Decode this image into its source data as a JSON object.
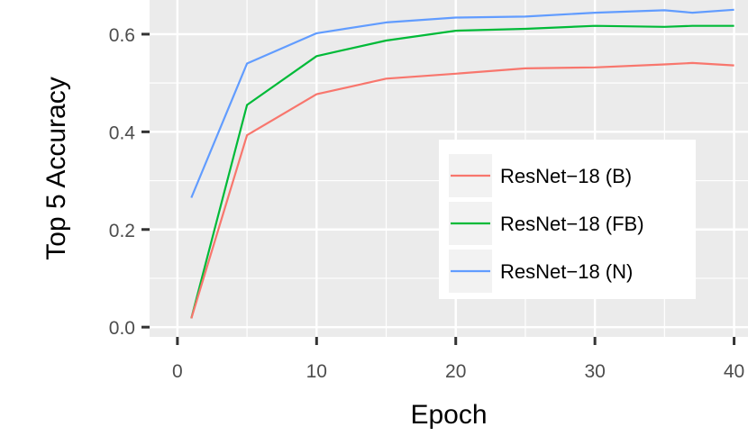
{
  "chart_data": {
    "type": "line",
    "title": "",
    "xlabel": "Epoch",
    "ylabel": "Top 5 Accuracy",
    "xlim": [
      -2,
      41
    ],
    "ylim": [
      -0.02,
      0.67
    ],
    "xticks": [
      0,
      10,
      20,
      30,
      40
    ],
    "xtick_labels": [
      "0",
      "10",
      "20",
      "30",
      "40"
    ],
    "yticks": [
      0.0,
      0.2,
      0.4,
      0.6
    ],
    "ytick_labels": [
      "0.0",
      "0.2",
      "0.4",
      "0.6"
    ],
    "grid": true,
    "legend_position": "inside-right",
    "series": [
      {
        "name": "ResNet−18 (N)",
        "color": "#619CFF",
        "x": [
          1,
          5,
          10,
          15,
          20,
          25,
          30,
          35,
          37,
          40
        ],
        "y": [
          0.265,
          0.54,
          0.602,
          0.624,
          0.634,
          0.636,
          0.644,
          0.649,
          0.644,
          0.65
        ]
      },
      {
        "name": "ResNet−18 (FB)",
        "color": "#00BA38",
        "x": [
          1,
          5,
          10,
          15,
          20,
          25,
          30,
          35,
          37,
          40
        ],
        "y": [
          0.018,
          0.455,
          0.555,
          0.587,
          0.607,
          0.611,
          0.617,
          0.615,
          0.617,
          0.617
        ]
      },
      {
        "name": "ResNet−18 (B)",
        "color": "#F8766D",
        "x": [
          1,
          5,
          10,
          15,
          20,
          25,
          30,
          35,
          37,
          40
        ],
        "y": [
          0.018,
          0.393,
          0.477,
          0.509,
          0.519,
          0.53,
          0.532,
          0.538,
          0.541,
          0.536
        ]
      }
    ]
  }
}
